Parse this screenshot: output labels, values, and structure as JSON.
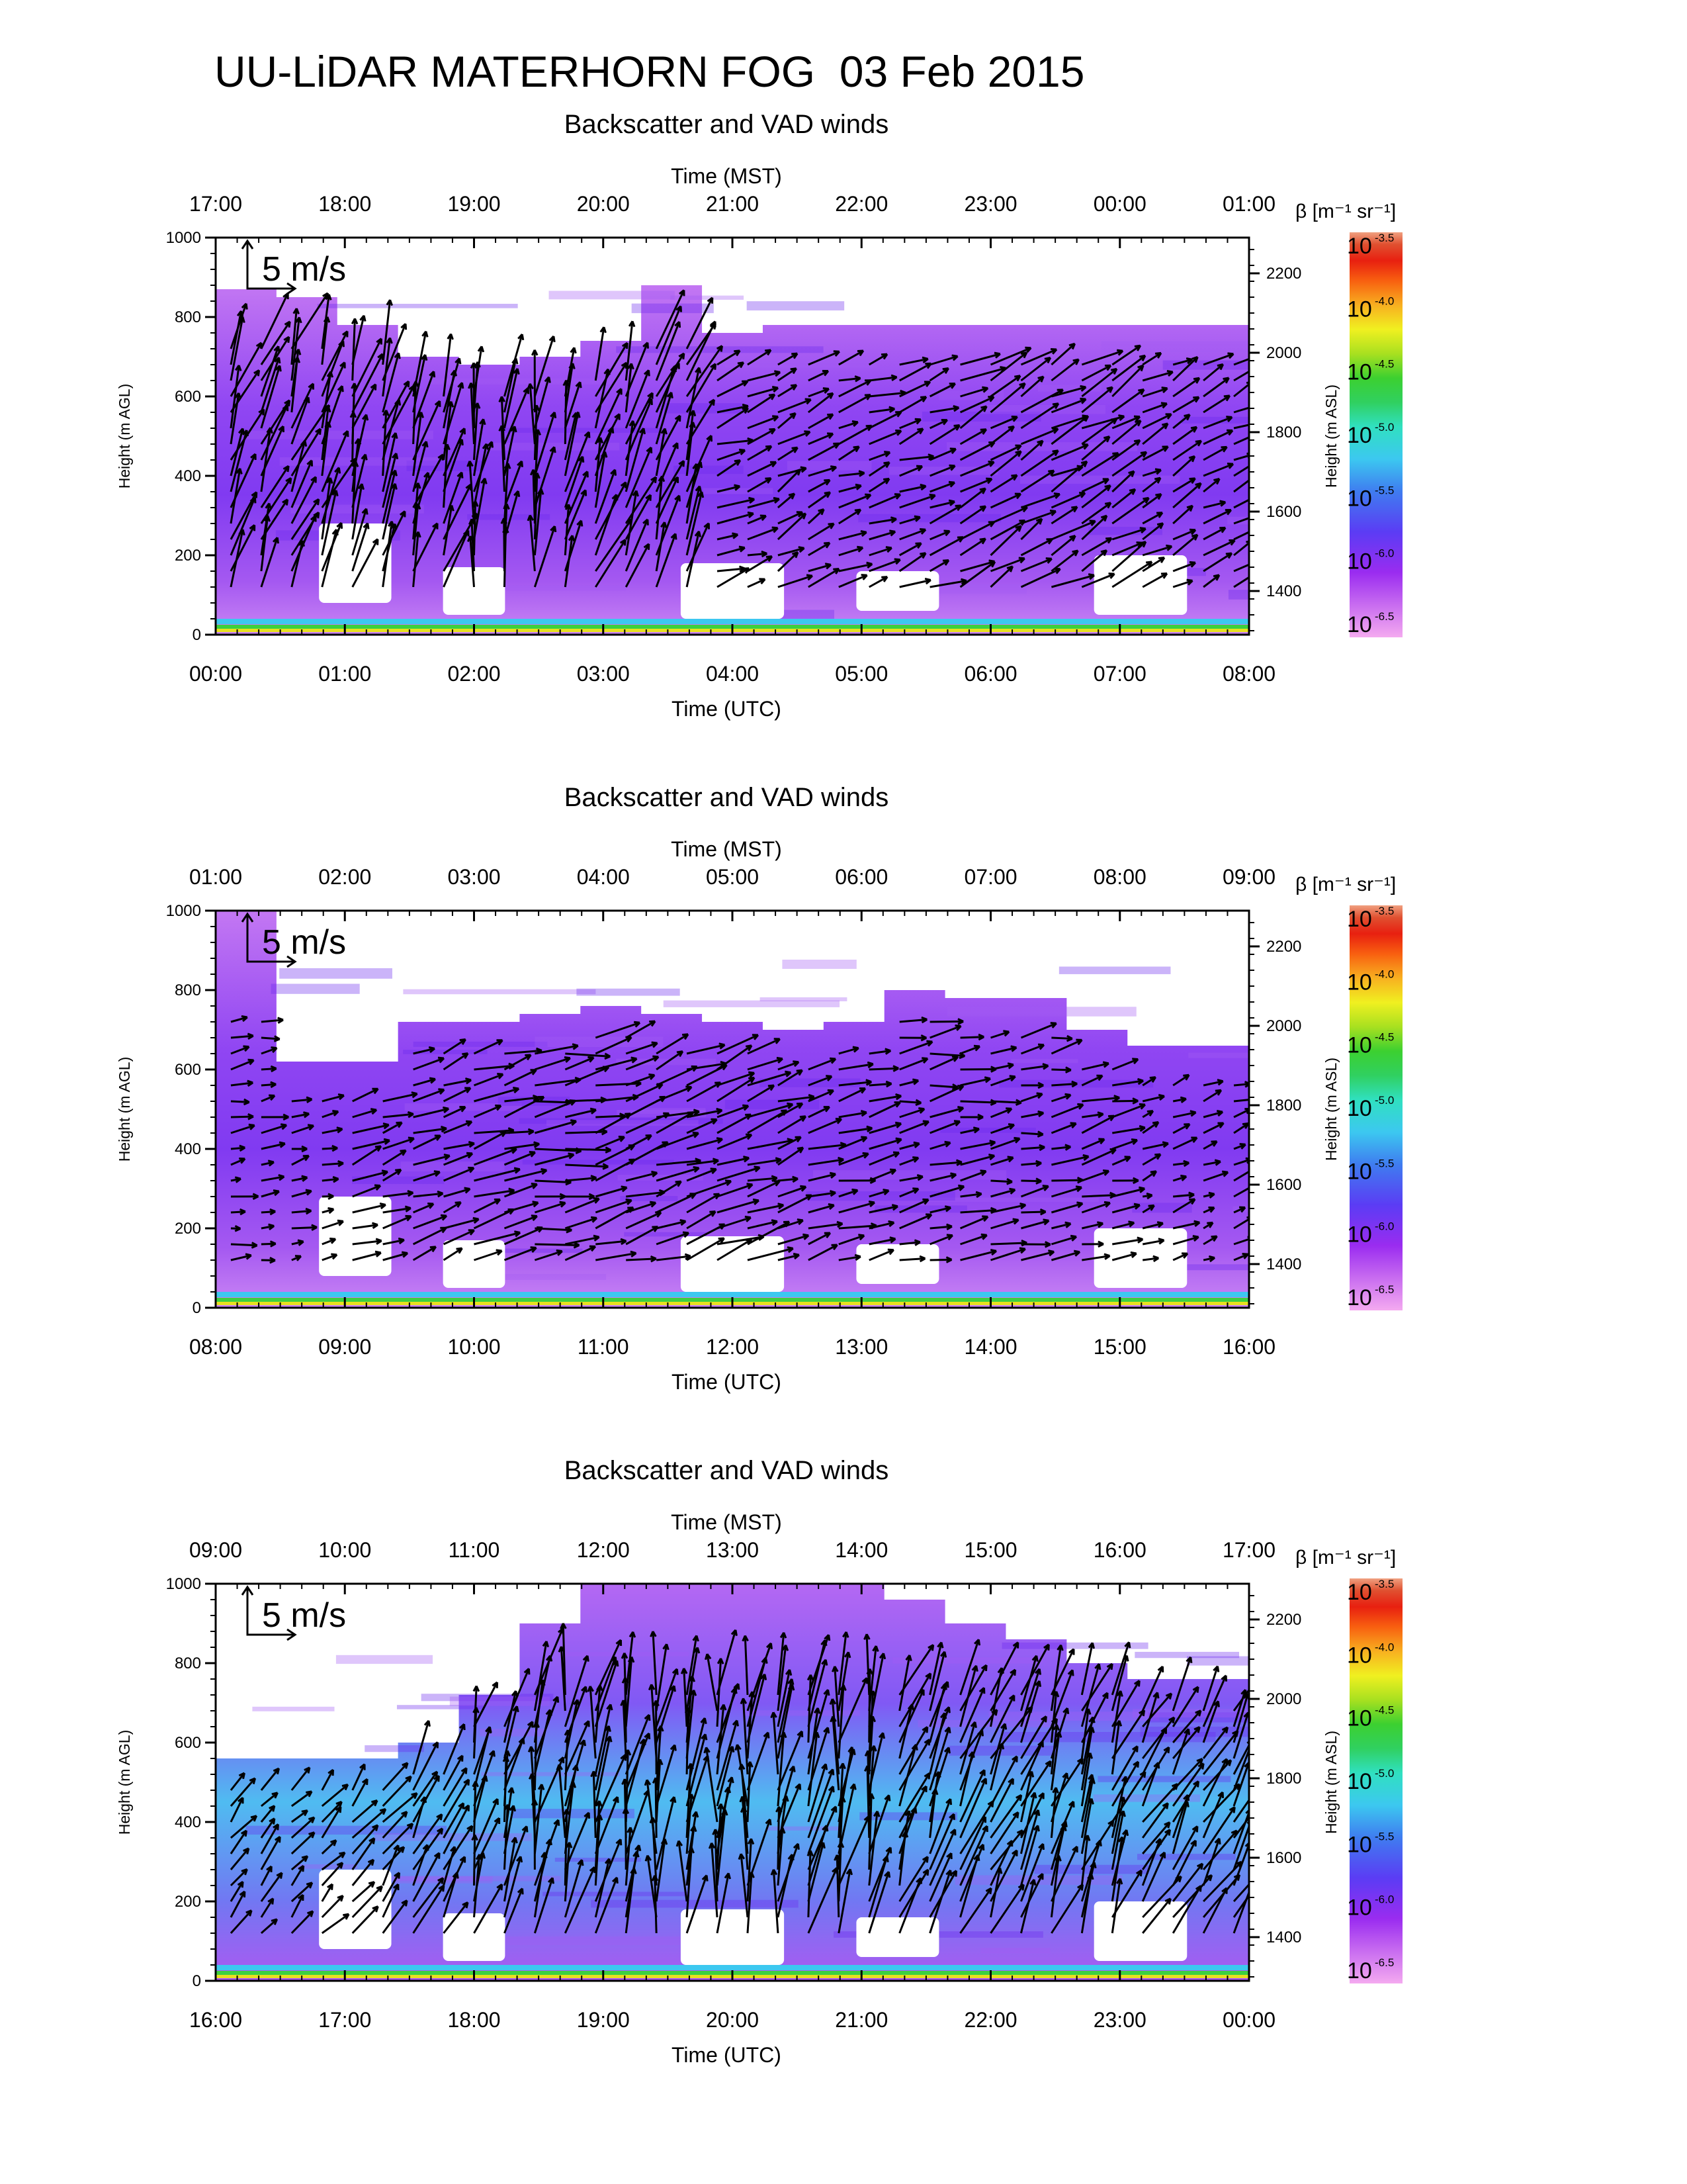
{
  "title": "UU-LiDAR MATERHORN FOG  03 Feb 2015",
  "chart_data": [
    {
      "type": "heatmap",
      "subtitle": "Backscatter and VAD winds",
      "top_axis_label": "Time (MST)",
      "top_ticks": [
        "17:00",
        "18:00",
        "19:00",
        "20:00",
        "21:00",
        "22:00",
        "23:00",
        "00:00",
        "01:00"
      ],
      "xlabel": "Time (UTC)",
      "x_ticks": [
        "00:00",
        "01:00",
        "02:00",
        "03:00",
        "04:00",
        "05:00",
        "06:00",
        "07:00",
        "08:00"
      ],
      "xlim_hours": [
        0,
        8
      ],
      "ylabel": "Height (m AGL)",
      "y_ticks": [
        0,
        200,
        400,
        600,
        800,
        1000
      ],
      "ylim": [
        0,
        1000
      ],
      "y2label": "Height (m ASL)",
      "y2_ticks": [
        1400,
        1600,
        1800,
        2000,
        2200
      ],
      "y2lim": [
        1290,
        2290
      ],
      "vector_scale_label": "5 m/s",
      "colorbar": {
        "label": "β [m⁻¹ sr⁻¹]",
        "base": "10",
        "exponents": [
          "-3.5",
          "-4.0",
          "-4.5",
          "-5.0",
          "-5.5",
          "-6.0",
          "-6.5"
        ]
      },
      "aerosol_layer_top_m": [
        870,
        850,
        780,
        700,
        680,
        700,
        740,
        880,
        760,
        780,
        780,
        780,
        780,
        780,
        780,
        780,
        780
      ],
      "fog_deck_shading": "purple",
      "winds": {
        "direction_deg_approx": [
          200,
          200,
          195,
          195,
          190,
          190,
          200,
          200,
          250,
          240,
          250,
          250,
          240,
          240,
          240,
          240,
          245
        ],
        "speed_ms_approx": [
          6,
          6,
          6,
          6,
          6,
          6,
          6,
          6,
          3,
          3,
          3,
          3,
          4,
          4,
          4,
          3,
          3
        ]
      }
    },
    {
      "type": "heatmap",
      "subtitle": "Backscatter and VAD winds",
      "top_axis_label": "Time (MST)",
      "top_ticks": [
        "01:00",
        "02:00",
        "03:00",
        "04:00",
        "05:00",
        "06:00",
        "07:00",
        "08:00",
        "09:00"
      ],
      "xlabel": "Time (UTC)",
      "x_ticks": [
        "08:00",
        "09:00",
        "10:00",
        "11:00",
        "12:00",
        "13:00",
        "14:00",
        "15:00",
        "16:00"
      ],
      "xlim_hours": [
        8,
        16
      ],
      "ylabel": "Height (m AGL)",
      "y_ticks": [
        0,
        200,
        400,
        600,
        800,
        1000
      ],
      "ylim": [
        0,
        1000
      ],
      "y2label": "Height (m ASL)",
      "y2_ticks": [
        1400,
        1600,
        1800,
        2000,
        2200
      ],
      "y2lim": [
        1290,
        2290
      ],
      "vector_scale_label": "5 m/s",
      "colorbar": {
        "label": "β [m⁻¹ sr⁻¹]",
        "base": "10",
        "exponents": [
          "-3.5",
          "-4.0",
          "-4.5",
          "-5.0",
          "-5.5",
          "-6.0",
          "-6.5"
        ]
      },
      "aerosol_layer_top_m": [
        1000,
        620,
        620,
        720,
        720,
        740,
        760,
        740,
        720,
        700,
        720,
        800,
        780,
        780,
        700,
        660,
        660
      ],
      "fog_deck_shading": "purple",
      "winds": {
        "direction_deg_approx": [
          260,
          255,
          250,
          250,
          255,
          260,
          255,
          250,
          250,
          250,
          255,
          260,
          260,
          260,
          255,
          250,
          250
        ],
        "speed_ms_approx": [
          2,
          2,
          3,
          3,
          4,
          4,
          4,
          4,
          4,
          3,
          3,
          3,
          3,
          3,
          3,
          2,
          2
        ]
      }
    },
    {
      "type": "heatmap",
      "subtitle": "Backscatter and VAD winds",
      "top_axis_label": "Time (MST)",
      "top_ticks": [
        "09:00",
        "10:00",
        "11:00",
        "12:00",
        "13:00",
        "14:00",
        "15:00",
        "16:00",
        "17:00"
      ],
      "xlabel": "Time (UTC)",
      "x_ticks": [
        "16:00",
        "17:00",
        "18:00",
        "19:00",
        "20:00",
        "21:00",
        "22:00",
        "23:00",
        "00:00"
      ],
      "xlim_hours": [
        16,
        24
      ],
      "ylabel": "Height (m AGL)",
      "y_ticks": [
        0,
        200,
        400,
        600,
        800,
        1000
      ],
      "ylim": [
        0,
        1000
      ],
      "y2label": "Height (m ASL)",
      "y2_ticks": [
        1400,
        1600,
        1800,
        2000,
        2200
      ],
      "y2lim": [
        1290,
        2290
      ],
      "vector_scale_label": "5 m/s",
      "colorbar": {
        "label": "β [m⁻¹ sr⁻¹]",
        "base": "10",
        "exponents": [
          "-3.5",
          "-4.0",
          "-4.5",
          "-5.0",
          "-5.5",
          "-6.0",
          "-6.5"
        ]
      },
      "aerosol_layer_top_m": [
        560,
        560,
        560,
        600,
        720,
        900,
        1000,
        1000,
        1000,
        1000,
        1000,
        960,
        900,
        860,
        800,
        760,
        760
      ],
      "fog_deck_shading": "purple",
      "winds": {
        "direction_deg_approx": [
          220,
          220,
          215,
          210,
          195,
          190,
          190,
          185,
          185,
          190,
          190,
          200,
          205,
          200,
          200,
          210,
          210
        ],
        "speed_ms_approx": [
          3,
          3,
          4,
          5,
          6,
          7,
          7,
          7,
          7,
          7,
          7,
          6,
          6,
          6,
          6,
          5,
          5
        ]
      }
    }
  ]
}
